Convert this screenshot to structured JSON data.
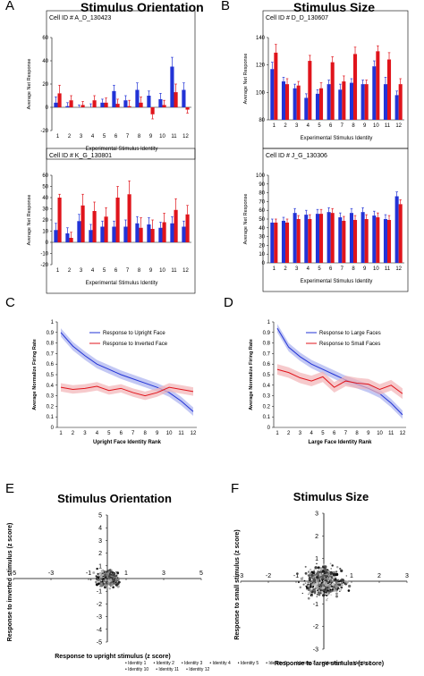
{
  "panels": {
    "A": "A",
    "B": "B",
    "C": "C",
    "D": "D",
    "E": "E",
    "F": "F"
  },
  "section_titles": {
    "orientation": "Stimulus Orientation",
    "size": "Stimulus Size"
  },
  "colors": {
    "blue": "#2233d6",
    "red": "#e0141b",
    "shade_blue": "#a9b0ef",
    "shade_red": "#f2b3b6"
  },
  "chart_data": [
    {
      "type": "bar",
      "id": "A1",
      "cell": "Cell ID # A_D_130423",
      "categories": [
        "1",
        "2",
        "3",
        "4",
        "5",
        "6",
        "7",
        "8",
        "9",
        "10",
        "11",
        "12"
      ],
      "ylim": [
        -20,
        60
      ],
      "yticks": [
        -20,
        0,
        20,
        40,
        60
      ],
      "ylabel": "Average Net Response",
      "xlabel": "Experimental Stimulus Identity",
      "series": [
        {
          "color": "blue",
          "values": [
            4,
            1,
            0,
            0,
            4,
            14,
            6,
            15,
            10,
            7,
            35,
            15
          ],
          "err": [
            5,
            3,
            2,
            3,
            3,
            5,
            4,
            6,
            4,
            5,
            8,
            6
          ]
        },
        {
          "color": "red",
          "values": [
            12,
            6,
            2,
            6,
            4,
            3,
            1,
            4,
            -6,
            2,
            13,
            -2
          ],
          "err": [
            7,
            4,
            3,
            4,
            4,
            4,
            5,
            5,
            4,
            4,
            7,
            3
          ]
        }
      ]
    },
    {
      "type": "bar",
      "id": "A2",
      "cell": "Cell ID # K_G_130801",
      "categories": [
        "1",
        "2",
        "3",
        "4",
        "5",
        "6",
        "7",
        "8",
        "9",
        "10",
        "11",
        "12"
      ],
      "ylim": [
        -20,
        60
      ],
      "yticks": [
        -20,
        -10,
        0,
        10,
        20,
        30,
        40,
        50,
        60
      ],
      "ylabel": "Average Net Response",
      "xlabel": "Experimental Stimulus Identity",
      "series": [
        {
          "color": "blue",
          "values": [
            11,
            8,
            19,
            11,
            14,
            14,
            14,
            17,
            16,
            13,
            17,
            14
          ],
          "err": [
            6,
            5,
            6,
            5,
            5,
            5,
            6,
            6,
            6,
            5,
            6,
            5
          ]
        },
        {
          "color": "red",
          "values": [
            40,
            4,
            33,
            28,
            23,
            40,
            43,
            13,
            12,
            18,
            29,
            25
          ],
          "err": [
            3,
            5,
            10,
            8,
            8,
            10,
            12,
            9,
            8,
            8,
            10,
            8
          ]
        }
      ]
    },
    {
      "type": "bar",
      "id": "B1",
      "cell": "Cell ID # D_D_130607",
      "categories": [
        "1",
        "2",
        "3",
        "4",
        "5",
        "6",
        "7",
        "8",
        "9",
        "10",
        "11",
        "12"
      ],
      "ylim": [
        80,
        140
      ],
      "yticks": [
        80,
        100,
        120,
        140
      ],
      "ylabel": "Average Net Response",
      "xlabel": "Experimental Stimulus Identity",
      "series": [
        {
          "color": "blue",
          "values": [
            117,
            108,
            103,
            96,
            99,
            106,
            102,
            107,
            106,
            119,
            106,
            98
          ],
          "err": [
            5,
            3,
            3,
            3,
            3,
            3,
            4,
            3,
            3,
            4,
            5,
            3
          ]
        },
        {
          "color": "red",
          "values": [
            129,
            106,
            105,
            123,
            103,
            122,
            108,
            128,
            106,
            130,
            124,
            106
          ],
          "err": [
            6,
            4,
            3,
            4,
            4,
            4,
            4,
            5,
            3,
            4,
            5,
            4
          ]
        }
      ]
    },
    {
      "type": "bar",
      "id": "B2",
      "cell": "Cell ID # J_G_130306",
      "categories": [
        "1",
        "2",
        "3",
        "4",
        "5",
        "6",
        "7",
        "8",
        "9",
        "10",
        "11",
        "12"
      ],
      "ylim": [
        0,
        100
      ],
      "yticks": [
        0,
        10,
        20,
        30,
        40,
        50,
        60,
        70,
        80,
        90,
        100
      ],
      "ylabel": "Average Net Response",
      "xlabel": "Experimental Stimulus Identity",
      "series": [
        {
          "color": "blue",
          "values": [
            46,
            48,
            57,
            55,
            56,
            58,
            52,
            57,
            58,
            54,
            50,
            76
          ],
          "err": [
            4,
            4,
            5,
            5,
            5,
            5,
            5,
            5,
            5,
            5,
            5,
            5
          ]
        },
        {
          "color": "red",
          "values": [
            46,
            46,
            50,
            50,
            56,
            57,
            48,
            49,
            50,
            52,
            49,
            67
          ],
          "err": [
            4,
            4,
            4,
            5,
            5,
            5,
            5,
            5,
            5,
            5,
            5,
            5
          ]
        }
      ]
    },
    {
      "type": "line",
      "id": "C",
      "x": [
        1,
        2,
        3,
        4,
        5,
        6,
        7,
        8,
        9,
        10,
        11,
        12
      ],
      "ylim": [
        0,
        1
      ],
      "yticks": [
        0,
        0.1,
        0.2,
        0.3,
        0.4,
        0.5,
        0.6,
        0.7,
        0.8,
        0.9,
        1
      ],
      "ylabel": "Average Normalize Firing Rate",
      "xlabel": "Upright Face Identity Rank",
      "series": [
        {
          "name": "Response to Upright Face",
          "color": "blue",
          "values": [
            0.9,
            0.77,
            0.68,
            0.6,
            0.55,
            0.5,
            0.46,
            0.42,
            0.38,
            0.33,
            0.25,
            0.15
          ],
          "band": 0.04
        },
        {
          "name": "Response to Inverted Face",
          "color": "red",
          "values": [
            0.38,
            0.36,
            0.37,
            0.39,
            0.35,
            0.37,
            0.33,
            0.3,
            0.33,
            0.38,
            0.36,
            0.34
          ],
          "band": 0.04
        }
      ]
    },
    {
      "type": "line",
      "id": "D",
      "x": [
        1,
        2,
        3,
        4,
        5,
        6,
        7,
        8,
        9,
        10,
        11,
        12
      ],
      "ylim": [
        0,
        1
      ],
      "yticks": [
        0,
        0.1,
        0.2,
        0.3,
        0.4,
        0.5,
        0.6,
        0.7,
        0.8,
        0.9,
        1
      ],
      "ylabel": "Average Normalize Firing Rate",
      "xlabel": "Large Face Identity Rank",
      "series": [
        {
          "name": "Response to Large Faces",
          "color": "blue",
          "values": [
            0.94,
            0.76,
            0.67,
            0.6,
            0.55,
            0.5,
            0.45,
            0.41,
            0.37,
            0.32,
            0.23,
            0.12
          ],
          "band": 0.04
        },
        {
          "name": "Response to Small Faces",
          "color": "red",
          "values": [
            0.55,
            0.52,
            0.47,
            0.44,
            0.48,
            0.38,
            0.44,
            0.42,
            0.41,
            0.36,
            0.4,
            0.32
          ],
          "band": 0.05
        }
      ]
    },
    {
      "type": "scatter",
      "id": "E",
      "title": "Stimulus Orientation",
      "xlim": [
        -5,
        5
      ],
      "ylim": [
        -5,
        5
      ],
      "xticks": [
        -5,
        -3,
        -1,
        1,
        3,
        5
      ],
      "yticks": [
        -5,
        -4,
        -3,
        -2,
        -1,
        1,
        2,
        3,
        4,
        5
      ],
      "xlabel": "Response to upright stimulus (z score)",
      "ylabel": "Response to inverted stimulus (z score)"
    },
    {
      "type": "scatter",
      "id": "F",
      "title": "Stimulus Size",
      "xlim": [
        -3,
        3
      ],
      "ylim": [
        -3,
        3
      ],
      "xticks": [
        -3,
        -2,
        -1,
        1,
        2,
        3
      ],
      "yticks": [
        -3,
        -2,
        -1,
        1,
        2,
        3
      ],
      "xlabel": "Response to large stimulus (z score)",
      "ylabel": "Response to small stimulus (z score)"
    }
  ],
  "legend": [
    "Identity 1",
    "Identity 2",
    "Identity 3",
    "Identity 4",
    "Identity 5",
    "Identity 6",
    "Identity 7",
    "Identity 8",
    "Identity 9",
    "Identity 10",
    "Identity 11",
    "Identity 12"
  ]
}
